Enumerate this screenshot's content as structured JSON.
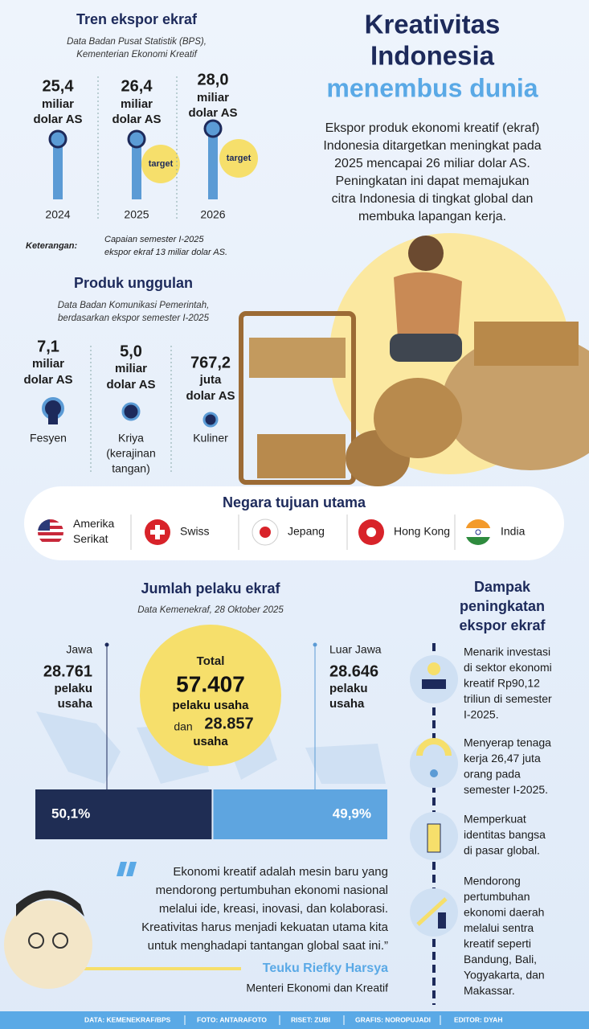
{
  "header": {
    "title": [
      "Kreativitas",
      "Indonesia"
    ],
    "subtitle": "menembus dunia",
    "intro": [
      "Ekspor produk ekonomi kreatif (ekraf)",
      "Indonesia ditargetkan meningkat pada",
      "2025 mencapai 26 miliar dolar AS.",
      "Peningkatan ini dapat memajukan",
      "citra Indonesia di tingkat global dan",
      "membuka lapangan kerja."
    ]
  },
  "trend": {
    "title": "Tren ekspor ekraf",
    "source": [
      "Data Badan Pusat Statistik (BPS),",
      "Kementerian Ekonomi Kreatif"
    ],
    "items": [
      {
        "value": "25,4",
        "unit": [
          "miliar",
          "dolar AS"
        ],
        "year": "2024"
      },
      {
        "value": "26,4",
        "unit": [
          "miliar",
          "dolar AS"
        ],
        "year": "2025",
        "tag": "target"
      },
      {
        "value": "28,0",
        "unit": [
          "miliar",
          "dolar AS"
        ],
        "year": "2026",
        "tag": "target"
      }
    ],
    "note_label": "Keterangan:",
    "note": [
      "Capaian semester I-2025",
      "ekspor ekraf 13 miliar dolar AS."
    ]
  },
  "products": {
    "title": "Produk unggulan",
    "source": [
      "Data Badan Komunikasi Pemerintah,",
      "berdasarkan ekspor semester I-2025"
    ],
    "items": [
      {
        "value": "7,1",
        "unit": [
          "miliar",
          "dolar AS"
        ],
        "name": [
          "Fesyen"
        ]
      },
      {
        "value": "5,0",
        "unit": [
          "miliar",
          "dolar AS"
        ],
        "name": [
          "Kriya",
          "(kerajinan",
          "tangan)"
        ]
      },
      {
        "value": "767,2",
        "unit": [
          "juta",
          "dolar AS"
        ],
        "name": [
          "Kuliner"
        ]
      }
    ]
  },
  "destinations": {
    "title": "Negara tujuan utama",
    "countries": [
      {
        "name": [
          "Amerika",
          "Serikat"
        ]
      },
      {
        "name": [
          "Swiss"
        ]
      },
      {
        "name": [
          "Jepang"
        ]
      },
      {
        "name": [
          "Hong Kong"
        ]
      },
      {
        "name": [
          "India"
        ]
      }
    ]
  },
  "actors": {
    "title": "Jumlah pelaku ekraf",
    "source": "Data Kemenekraf, 28 Oktober 2025",
    "java": {
      "label": "Jawa",
      "value": "28.761",
      "unit": [
        "pelaku",
        "usaha"
      ]
    },
    "outside": {
      "label": "Luar Jawa",
      "value": "28.646",
      "unit": [
        "pelaku",
        "usaha"
      ]
    },
    "total": {
      "label": "Total",
      "value": "57.407",
      "unit": "pelaku usaha",
      "conj": "dan",
      "extra": "28.857",
      "extra_unit": "usaha"
    },
    "shares": [
      {
        "value": 50.1,
        "label": "50,1%"
      },
      {
        "value": 49.9,
        "label": "49,9%"
      }
    ]
  },
  "impact": {
    "title": [
      "Dampak",
      "peningkatan",
      "ekspor ekraf"
    ],
    "items": [
      [
        "Menarik investasi",
        "di sektor ekonomi",
        "kreatif Rp90,12",
        "triliun di semester",
        "I-2025."
      ],
      [
        "Menyerap tenaga",
        "kerja 26,47 juta",
        "orang pada",
        "semester I-2025."
      ],
      [
        "Memperkuat",
        "identitas bangsa",
        "di pasar global."
      ],
      [
        "Mendorong",
        "pertumbuhan",
        "ekonomi daerah",
        "melalui sentra",
        "kreatif seperti",
        "Bandung, Bali,",
        "Yogyakarta, dan",
        "Makassar."
      ]
    ]
  },
  "quote": {
    "text": [
      "Ekonomi kreatif adalah mesin baru yang",
      "mendorong pertumbuhan ekonomi nasional",
      "melalui ide, kreasi, inovasi, dan kolaborasi.",
      "Kreativitas harus menjadi kekuatan utama kita",
      "untuk menghadapi tantangan global saat ini.”"
    ],
    "name": "Teuku Riefky Harsya",
    "role": "Menteri Ekonomi dan Kreatif"
  },
  "footer": [
    "DATA: KEMENEKRAF/BPS",
    "FOTO: ANTARAFOTO",
    "RISET: ZUBI",
    "GRAFIS: NOROPUJADI",
    "EDITOR: DYAH"
  ]
}
